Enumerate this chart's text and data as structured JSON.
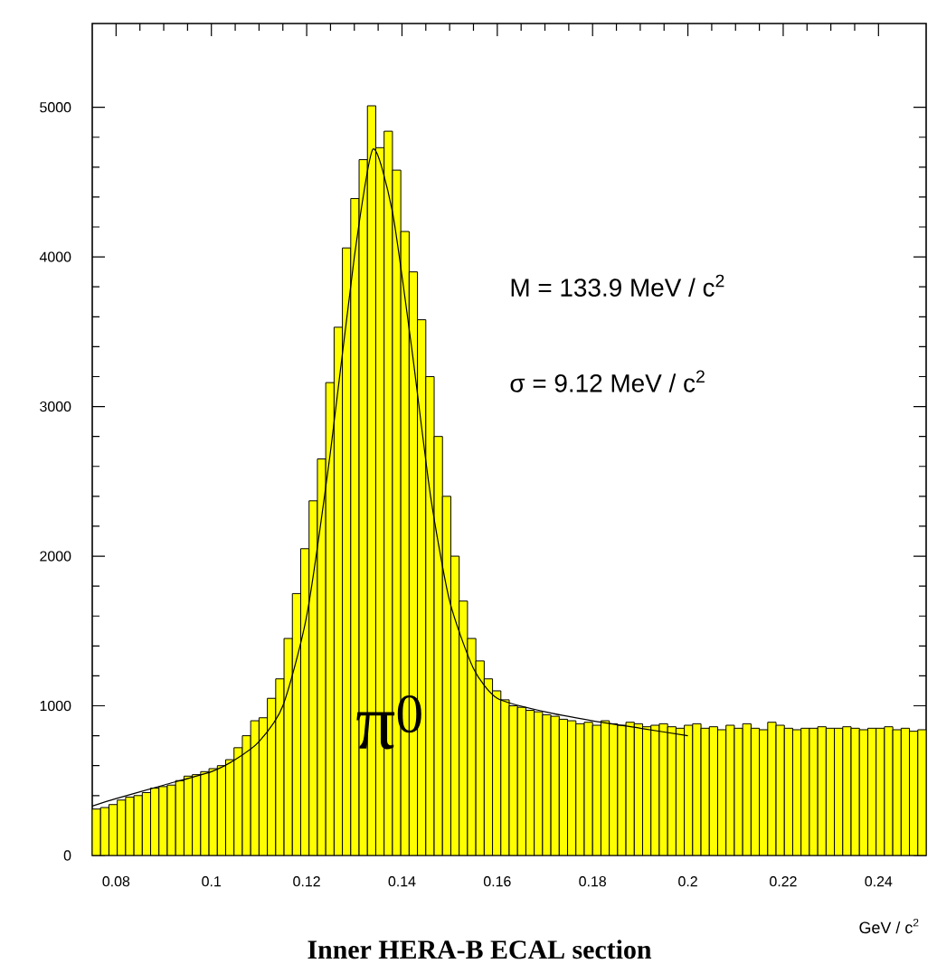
{
  "chart_data": {
    "type": "histogram",
    "title": "Inner HERA-B ECAL section",
    "xlabel": "GeV / c$^{2}$",
    "annotations": [
      "M = 133.9 MeV / c$^{2}$",
      "σ = 9.12 MeV / c$^{2}$",
      "π$^{0}$"
    ],
    "xlim": [
      0.075,
      0.25
    ],
    "ylim": [
      0,
      5560
    ],
    "xticks": [
      0.08,
      0.1,
      0.12,
      0.14,
      0.16,
      0.18,
      0.2,
      0.22,
      0.24
    ],
    "yticks": [
      0,
      1000,
      2000,
      3000,
      4000,
      5000
    ],
    "grid": false,
    "series": [
      {
        "type": "histogram",
        "color": "#ffff00",
        "bins": [
          0.075,
          0.07675,
          0.0785,
          0.08025,
          0.082,
          0.08375,
          0.0855,
          0.08725,
          0.089,
          0.09075,
          0.0925,
          0.09425,
          0.096,
          0.09775,
          0.0995,
          0.10125,
          0.103,
          0.10475,
          0.1065,
          0.10825,
          0.11,
          0.11175,
          0.1135,
          0.11525,
          0.117,
          0.11875,
          0.1205,
          0.12225,
          0.124,
          0.12575,
          0.1275,
          0.12925,
          0.131,
          0.13275,
          0.1345,
          0.13625,
          0.138,
          0.13975,
          0.1415,
          0.14325,
          0.145,
          0.14675,
          0.1485,
          0.15025,
          0.152,
          0.15375,
          0.1555,
          0.15725,
          0.159,
          0.16075,
          0.1625,
          0.16425,
          0.166,
          0.16775,
          0.1695,
          0.17125,
          0.173,
          0.17475,
          0.1765,
          0.17825,
          0.18,
          0.18175,
          0.1835,
          0.18525,
          0.187,
          0.18875,
          0.1905,
          0.19225,
          0.194,
          0.19575,
          0.1975,
          0.19925,
          0.201,
          0.20275,
          0.2045,
          0.20625,
          0.208,
          0.20975,
          0.2115,
          0.21325,
          0.215,
          0.21675,
          0.2185,
          0.22025,
          0.222,
          0.22375,
          0.2255,
          0.22725,
          0.229,
          0.23075,
          0.2325,
          0.23425,
          0.236,
          0.23775,
          0.2395,
          0.24125,
          0.243,
          0.24475,
          0.2465,
          0.24825,
          0.25
        ],
        "values": [
          310,
          320,
          340,
          370,
          390,
          400,
          420,
          450,
          460,
          470,
          500,
          530,
          540,
          560,
          580,
          600,
          640,
          720,
          800,
          900,
          920,
          1050,
          1180,
          1450,
          1750,
          2050,
          2370,
          2650,
          3160,
          3530,
          4060,
          4390,
          4650,
          5010,
          4730,
          4840,
          4580,
          4170,
          3900,
          3580,
          3200,
          2800,
          2400,
          2000,
          1700,
          1450,
          1300,
          1180,
          1100,
          1040,
          1000,
          990,
          970,
          960,
          940,
          930,
          910,
          900,
          880,
          890,
          870,
          900,
          880,
          870,
          890,
          880,
          860,
          870,
          880,
          860,
          850,
          870,
          880,
          850,
          860,
          840,
          870,
          850,
          880,
          850,
          840,
          890,
          870,
          850,
          840,
          850,
          850,
          860,
          850,
          850,
          860,
          850,
          840,
          850,
          850,
          860,
          840,
          850,
          830,
          840
        ]
      },
      {
        "type": "line",
        "color": "#000000",
        "line_style": "solid",
        "x": [
          0.075,
          0.08,
          0.09,
          0.1,
          0.105,
          0.11,
          0.115,
          0.12,
          0.125,
          0.13,
          0.1339,
          0.138,
          0.142,
          0.146,
          0.15,
          0.155,
          0.16,
          0.17,
          0.18,
          0.19,
          0.2
        ],
        "values": [
          330,
          380,
          470,
          560,
          640,
          760,
          1000,
          1600,
          2700,
          4000,
          4720,
          4300,
          3400,
          2400,
          1700,
          1250,
          1050,
          960,
          900,
          850,
          800
        ]
      }
    ]
  }
}
